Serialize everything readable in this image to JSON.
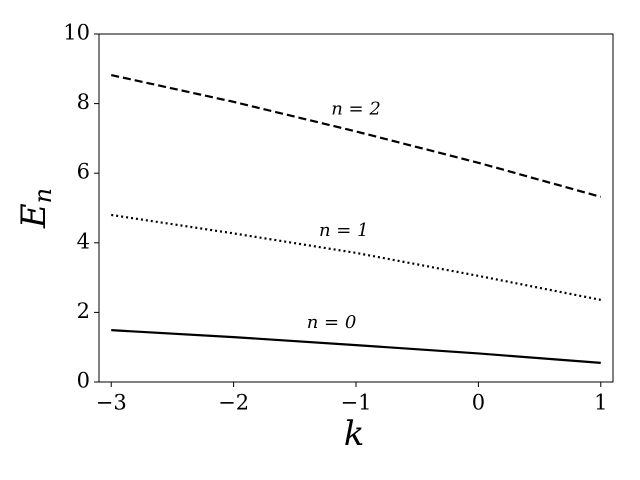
{
  "chart_data": {
    "type": "line",
    "x": [
      -3,
      -2,
      -1,
      0,
      1
    ],
    "series": [
      {
        "name": "n = 0",
        "color": "#000000",
        "style": "solid",
        "values": [
          1.49,
          1.29,
          1.06,
          0.82,
          0.55
        ]
      },
      {
        "name": "n = 1",
        "color": "#000000",
        "style": "dotted",
        "values": [
          4.8,
          4.27,
          3.71,
          3.05,
          2.36
        ]
      },
      {
        "name": "n = 2",
        "color": "#000000",
        "style": "dashed",
        "values": [
          8.82,
          8.05,
          7.2,
          6.3,
          5.32
        ]
      }
    ],
    "xlabel": "k",
    "ylabel": {
      "base": "E",
      "sub": "n"
    },
    "xlim": [
      -3.1,
      1.1
    ],
    "ylim": [
      0,
      10
    ],
    "xticks": [
      {
        "value": -3,
        "label": "−3"
      },
      {
        "value": -2,
        "label": "−2"
      },
      {
        "value": -1,
        "label": "−1"
      },
      0,
      1
    ],
    "yticks": [
      0,
      2,
      4,
      6,
      8,
      10
    ],
    "grid": false
  }
}
